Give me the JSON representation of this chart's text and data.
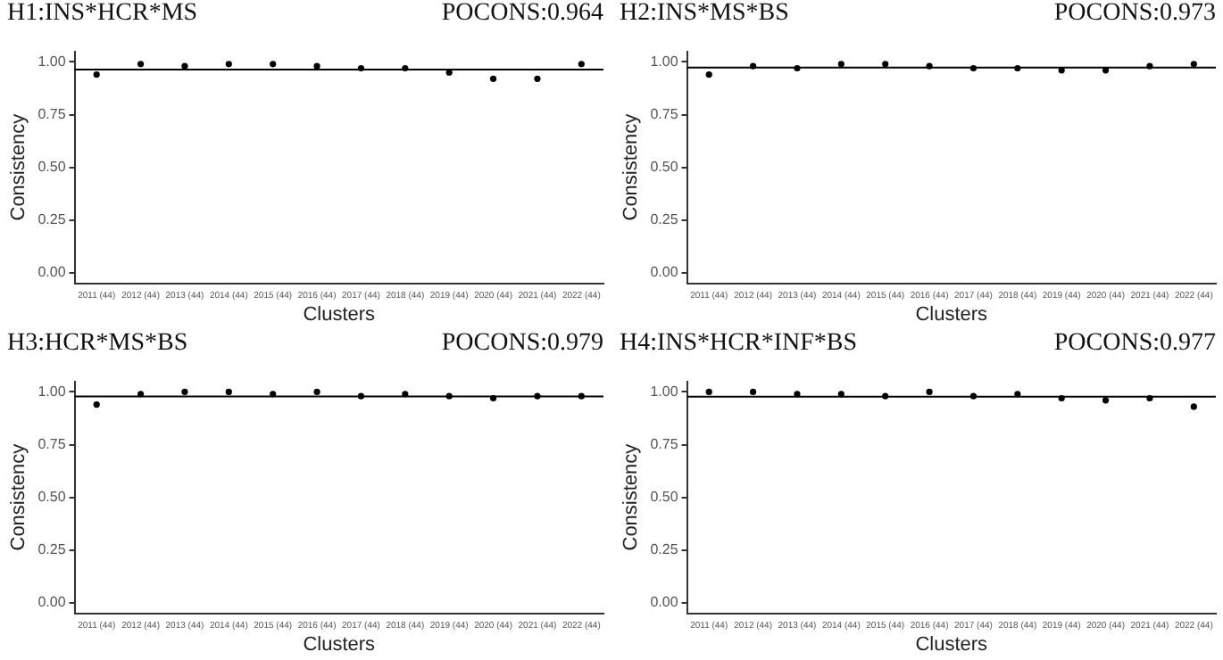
{
  "chart_data": [
    {
      "type": "scatter",
      "title": "H1:INS*HCR*MS",
      "annotations": [
        "POCONS:0.964"
      ],
      "xlabel": "Clusters",
      "ylabel": "Consistency",
      "categories": [
        "2011 (44)",
        "2012 (44)",
        "2013 (44)",
        "2014 (44)",
        "2015 (44)",
        "2016 (44)",
        "2017 (44)",
        "2018 (44)",
        "2019 (44)",
        "2020 (44)",
        "2021 (44)",
        "2022 (44)"
      ],
      "values": [
        0.94,
        0.99,
        0.98,
        0.99,
        0.99,
        0.98,
        0.97,
        0.97,
        0.95,
        0.92,
        0.92,
        0.99
      ],
      "color": "#000000",
      "marker": "circle",
      "ylim": [
        -0.05,
        1.05
      ],
      "yticks": [
        {
          "value": 0,
          "label": "0.00"
        },
        {
          "value": 0.25,
          "label": "0.25"
        },
        {
          "value": 0.5,
          "label": "0.50"
        },
        {
          "value": 0.75,
          "label": "0.75"
        },
        {
          "value": 1,
          "label": "1.00"
        }
      ],
      "ref_lines": [
        {
          "axis": "y",
          "value": 0.964,
          "color": "#000000"
        }
      ],
      "grid": false,
      "legend": false
    },
    {
      "type": "scatter",
      "title": "H2:INS*MS*BS",
      "annotations": [
        "POCONS:0.973"
      ],
      "xlabel": "Clusters",
      "ylabel": "Consistency",
      "categories": [
        "2011 (44)",
        "2012 (44)",
        "2013 (44)",
        "2014 (44)",
        "2015 (44)",
        "2016 (44)",
        "2017 (44)",
        "2018 (44)",
        "2019 (44)",
        "2020 (44)",
        "2021 (44)",
        "2022 (44)"
      ],
      "values": [
        0.94,
        0.98,
        0.97,
        0.99,
        0.99,
        0.98,
        0.97,
        0.97,
        0.96,
        0.96,
        0.98,
        0.99
      ],
      "color": "#000000",
      "marker": "circle",
      "ylim": [
        -0.05,
        1.05
      ],
      "yticks": [
        {
          "value": 0,
          "label": "0.00"
        },
        {
          "value": 0.25,
          "label": "0.25"
        },
        {
          "value": 0.5,
          "label": "0.50"
        },
        {
          "value": 0.75,
          "label": "0.75"
        },
        {
          "value": 1,
          "label": "1.00"
        }
      ],
      "ref_lines": [
        {
          "axis": "y",
          "value": 0.973,
          "color": "#000000"
        }
      ],
      "grid": false,
      "legend": false
    },
    {
      "type": "scatter",
      "title": "H3:HCR*MS*BS",
      "annotations": [
        "POCONS:0.979"
      ],
      "xlabel": "Clusters",
      "ylabel": "Consistency",
      "categories": [
        "2011 (44)",
        "2012 (44)",
        "2013 (44)",
        "2014 (44)",
        "2015 (44)",
        "2016 (44)",
        "2017 (44)",
        "2018 (44)",
        "2019 (44)",
        "2020 (44)",
        "2021 (44)",
        "2022 (44)"
      ],
      "values": [
        0.94,
        0.99,
        1.0,
        1.0,
        0.99,
        1.0,
        0.98,
        0.99,
        0.98,
        0.97,
        0.98,
        0.98
      ],
      "color": "#000000",
      "marker": "circle",
      "ylim": [
        -0.05,
        1.05
      ],
      "yticks": [
        {
          "value": 0,
          "label": "0.00"
        },
        {
          "value": 0.25,
          "label": "0.25"
        },
        {
          "value": 0.5,
          "label": "0.50"
        },
        {
          "value": 0.75,
          "label": "0.75"
        },
        {
          "value": 1,
          "label": "1.00"
        }
      ],
      "ref_lines": [
        {
          "axis": "y",
          "value": 0.979,
          "color": "#000000"
        }
      ],
      "grid": false,
      "legend": false
    },
    {
      "type": "scatter",
      "title": "H4:INS*HCR*INF*BS",
      "annotations": [
        "POCONS:0.977"
      ],
      "xlabel": "Clusters",
      "ylabel": "Consistency",
      "categories": [
        "2011 (44)",
        "2012 (44)",
        "2013 (44)",
        "2014 (44)",
        "2015 (44)",
        "2016 (44)",
        "2017 (44)",
        "2018 (44)",
        "2019 (44)",
        "2020 (44)",
        "2021 (44)",
        "2022 (44)"
      ],
      "values": [
        1.0,
        1.0,
        0.99,
        0.99,
        0.98,
        1.0,
        0.98,
        0.99,
        0.97,
        0.96,
        0.97,
        0.93
      ],
      "color": "#000000",
      "marker": "circle",
      "ylim": [
        -0.05,
        1.05
      ],
      "yticks": [
        {
          "value": 0,
          "label": "0.00"
        },
        {
          "value": 0.25,
          "label": "0.25"
        },
        {
          "value": 0.5,
          "label": "0.50"
        },
        {
          "value": 0.75,
          "label": "0.75"
        },
        {
          "value": 1,
          "label": "1.00"
        }
      ],
      "ref_lines": [
        {
          "axis": "y",
          "value": 0.977,
          "color": "#000000"
        }
      ],
      "grid": false,
      "legend": false
    }
  ]
}
